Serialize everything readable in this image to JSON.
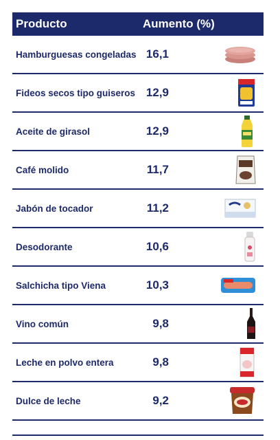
{
  "chart_data": {
    "type": "table",
    "columns": [
      "Producto",
      "Aumento (%)"
    ],
    "rows": [
      {
        "product": "Hamburguesas congeladas",
        "value": "16,1",
        "icon": "hamburger-patties-icon"
      },
      {
        "product": "Fideos secos tipo guiseros",
        "value": "12,9",
        "icon": "pasta-package-icon"
      },
      {
        "product": "Aceite de girasol",
        "value": "12,9",
        "icon": "oil-bottle-icon"
      },
      {
        "product": "Café molido",
        "value": "11,7",
        "icon": "coffee-bag-icon"
      },
      {
        "product": "Jabón de tocador",
        "value": "11,2",
        "icon": "soap-box-icon"
      },
      {
        "product": "Desodorante",
        "value": "10,6",
        "icon": "deodorant-icon"
      },
      {
        "product": "Salchicha tipo Viena",
        "value": "10,3",
        "icon": "sausage-package-icon"
      },
      {
        "product": "Vino común",
        "value": "9,8",
        "icon": "wine-bottle-icon"
      },
      {
        "product": "Leche en polvo entera",
        "value": "9,8",
        "icon": "milk-powder-icon"
      },
      {
        "product": "Dulce de leche",
        "value": "9,2",
        "icon": "dulce-jar-icon"
      }
    ],
    "colors": {
      "header_bg": "#1c2a6b",
      "text": "#1c2a6b"
    }
  }
}
